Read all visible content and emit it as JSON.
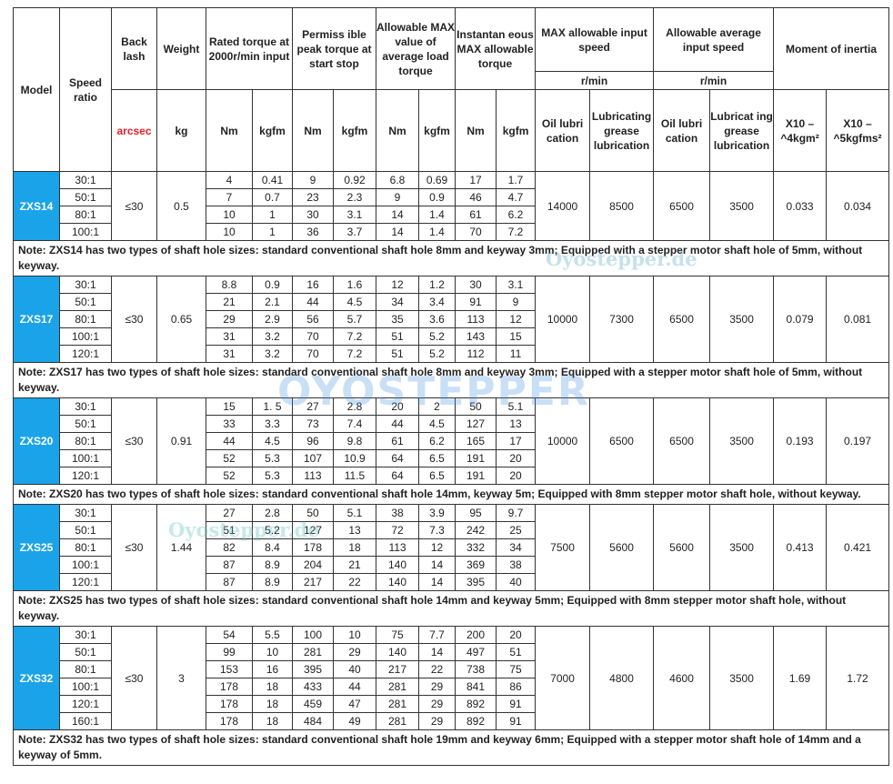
{
  "header": {
    "model": "Model",
    "speed_ratio": "Speed ratio",
    "backlash": "Back lash",
    "weight": "Weight",
    "rated_torque": "Rated torque at 2000r/min input",
    "peak_torque": "Permiss ible peak torque at start stop",
    "avg_load_torque": "Allowable MAX value of average load torque",
    "instant_torque": "Instantan eous MAX allowable torque",
    "max_speed": "MAX allowable input speed",
    "avg_speed": "Allowable    average input speed",
    "inertia": "Moment of inertia",
    "rpm1": "r/min",
    "rpm2": "r/min",
    "backlash_unit": "arcsec",
    "weight_unit": "kg",
    "nm": "Nm",
    "kgfm": "kgfm",
    "oil": "Oil lubri cation",
    "grease1": "Lubricating grease lubrication",
    "grease2": "Lubricat ing grease lubrication",
    "inertia1": "X10 – ^4kgm²",
    "inertia2": "X10 – ^5kgfms²"
  },
  "accent_color": "#1aa3e8",
  "models": [
    {
      "name": "ZXS14",
      "backlash": "≤30",
      "weight": "0.5",
      "max_oil": "14000",
      "max_grease": "8500",
      "avg_oil": "6500",
      "avg_grease": "3500",
      "inertia1": "0.033",
      "inertia2": "0.034",
      "rows": [
        [
          "30:1",
          "4",
          "0.41",
          "9",
          "0.92",
          "6.8",
          "0.69",
          "17",
          "1.7"
        ],
        [
          "50:1",
          "7",
          "0.7",
          "23",
          "2.3",
          "9",
          "0.9",
          "46",
          "4.7"
        ],
        [
          "80:1",
          "10",
          "1",
          "30",
          "3.1",
          "14",
          "1.4",
          "61",
          "6.2"
        ],
        [
          "100:1",
          "10",
          "1",
          "36",
          "3.7",
          "14",
          "1.4",
          "70",
          "7.2"
        ]
      ],
      "note": "Note: ZXS14 has two types of shaft hole sizes: standard conventional shaft hole 8mm and keyway 3mm; Equipped with a stepper motor shaft hole of 5mm, without keyway."
    },
    {
      "name": "ZXS17",
      "backlash": "≤30",
      "weight": "0.65",
      "max_oil": "10000",
      "max_grease": "7300",
      "avg_oil": "6500",
      "avg_grease": "3500",
      "inertia1": "0.079",
      "inertia2": "0.081",
      "rows": [
        [
          "30:1",
          "8.8",
          "0.9",
          "16",
          "1.6",
          "12",
          "1.2",
          "30",
          "3.1"
        ],
        [
          "50:1",
          "21",
          "2.1",
          "44",
          "4.5",
          "34",
          "3.4",
          "91",
          "9"
        ],
        [
          "80:1",
          "29",
          "2.9",
          "56",
          "5.7",
          "35",
          "3.6",
          "113",
          "12"
        ],
        [
          "100:1",
          "31",
          "3.2",
          "70",
          "7.2",
          "51",
          "5.2",
          "143",
          "15"
        ],
        [
          "120:1",
          "31",
          "3.2",
          "70",
          "7.2",
          "51",
          "5.2",
          "112",
          "11"
        ]
      ],
      "note": "Note: ZXS17 has two types of shaft hole sizes: standard conventional shaft hole 8mm and keyway 3mm; Equipped with a stepper motor shaft hole of 5mm, without keyway."
    },
    {
      "name": "ZXS20",
      "backlash": "≤30",
      "weight": "0.91",
      "max_oil": "10000",
      "max_grease": "6500",
      "avg_oil": "6500",
      "avg_grease": "3500",
      "inertia1": "0.193",
      "inertia2": "0.197",
      "rows": [
        [
          "30:1",
          "15",
          "1. 5",
          "27",
          "2.8",
          "20",
          "2",
          "50",
          "5.1"
        ],
        [
          "50:1",
          "33",
          "3.3",
          "73",
          "7.4",
          "44",
          "4.5",
          "127",
          "13"
        ],
        [
          "80:1",
          "44",
          "4.5",
          "96",
          "9.8",
          "61",
          "6.2",
          "165",
          "17"
        ],
        [
          "100:1",
          "52",
          "5.3",
          "107",
          "10.9",
          "64",
          "6.5",
          "191",
          "20"
        ],
        [
          "120:1",
          "52",
          "5.3",
          "113",
          "11.5",
          "64",
          "6.5",
          "191",
          "20"
        ]
      ],
      "note": "Note: ZXS20 has two types of shaft hole sizes: standard conventional shaft hole 14mm, keyway 5m; Equipped with 8mm stepper motor shaft hole, without keyway."
    },
    {
      "name": "ZXS25",
      "backlash": "≤30",
      "weight": "1.44",
      "max_oil": "7500",
      "max_grease": "5600",
      "avg_oil": "5600",
      "avg_grease": "3500",
      "inertia1": "0.413",
      "inertia2": "0.421",
      "rows": [
        [
          "30:1",
          "27",
          "2.8",
          "50",
          "5.1",
          "38",
          "3.9",
          "95",
          "9.7"
        ],
        [
          "50:1",
          "51",
          "5.2",
          "127",
          "13",
          "72",
          "7.3",
          "242",
          "25"
        ],
        [
          "80:1",
          "82",
          "8.4",
          "178",
          "18",
          "113",
          "12",
          "332",
          "34"
        ],
        [
          "100:1",
          "87",
          "8.9",
          "204",
          "21",
          "140",
          "14",
          "369",
          "38"
        ],
        [
          "120:1",
          "87",
          "8.9",
          "217",
          "22",
          "140",
          "14",
          "395",
          "40"
        ]
      ],
      "note": "Note: ZXS25 has two types of shaft hole sizes: standard conventional shaft hole 14mm and keyway 5mm; Equipped with 8mm stepper motor shaft hole, without keyway."
    },
    {
      "name": "ZXS32",
      "backlash": "≤30",
      "weight": "3",
      "max_oil": "7000",
      "max_grease": "4800",
      "avg_oil": "4600",
      "avg_grease": "3500",
      "inertia1": "1.69",
      "inertia2": "1.72",
      "rows": [
        [
          "30:1",
          "54",
          "5.5",
          "100",
          "10",
          "75",
          "7.7",
          "200",
          "20"
        ],
        [
          "50:1",
          "99",
          "10",
          "281",
          "29",
          "140",
          "14",
          "497",
          "51"
        ],
        [
          "80:1",
          "153",
          "16",
          "395",
          "40",
          "217",
          "22",
          "738",
          "75"
        ],
        [
          "100:1",
          "178",
          "18",
          "433",
          "44",
          "281",
          "29",
          "841",
          "86"
        ],
        [
          "120:1",
          "178",
          "18",
          "459",
          "47",
          "281",
          "29",
          "892",
          "91"
        ],
        [
          "160:1",
          "178",
          "18",
          "484",
          "49",
          "281",
          "29",
          "892",
          "91"
        ]
      ],
      "note": "Note: ZXS32 has two types of shaft hole sizes: standard conventional shaft hole 19mm and keyway 6mm; Equipped with a stepper motor shaft hole of 14mm and a keyway of 5mm."
    }
  ],
  "watermarks": {
    "small1": "Oyostepper.de",
    "small2": "Oyostepper.de",
    "logo": "OYOSTEPPER"
  }
}
